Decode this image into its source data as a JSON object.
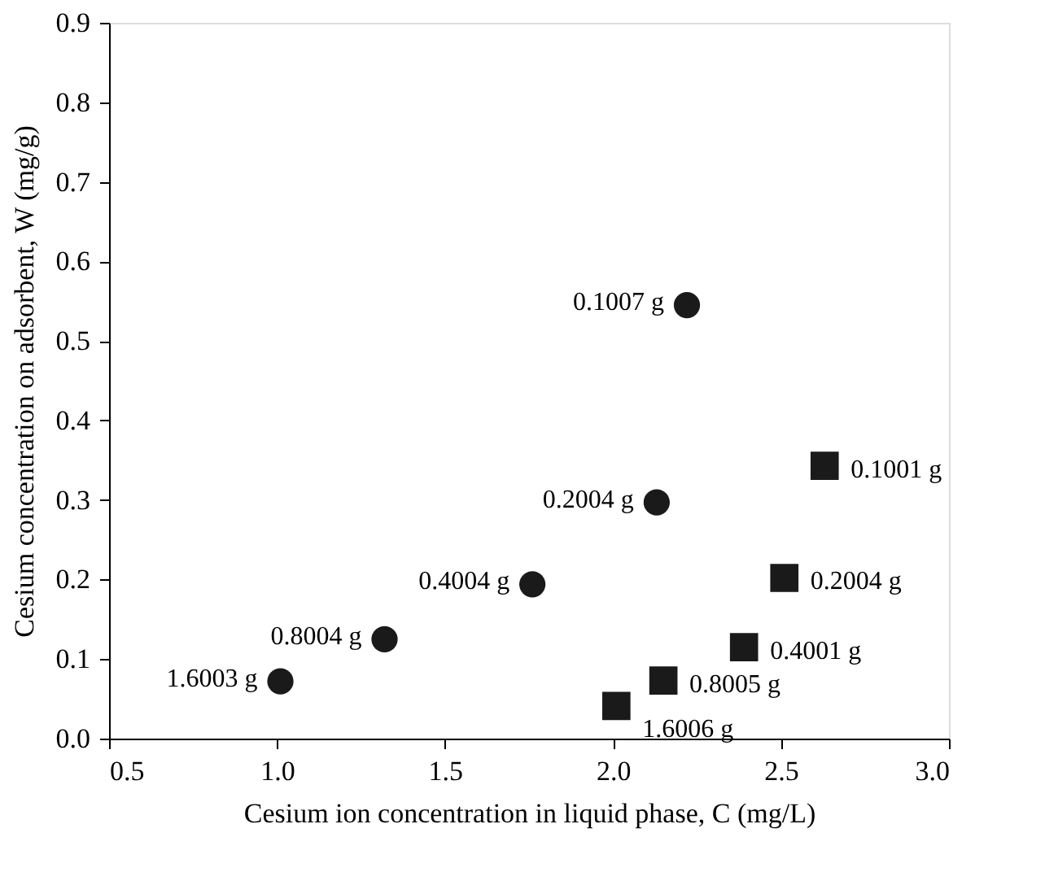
{
  "chart_data": {
    "type": "scatter",
    "xlabel": "Cesium ion concentration in liquid phase, C (mg/L)",
    "ylabel": "Cesium concentration on adsorbent, W (mg/g)",
    "xlim": [
      0.5,
      3.0
    ],
    "xticks": [
      {
        "value": 0.5,
        "label": "0.5"
      },
      {
        "value": 1.0,
        "label": "1.0"
      },
      {
        "value": 1.5,
        "label": "1.5"
      },
      {
        "value": 2.0,
        "label": "2.0"
      },
      {
        "value": 2.5,
        "label": "2.5"
      },
      {
        "value": 3.0,
        "label": "3.0"
      }
    ],
    "ylim": [
      0.0,
      0.9
    ],
    "yticks": [
      {
        "value": 0.0,
        "label": "0.0"
      },
      {
        "value": 0.1,
        "label": "0.1"
      },
      {
        "value": 0.2,
        "label": "0.2"
      },
      {
        "value": 0.3,
        "label": "0.3"
      },
      {
        "value": 0.4,
        "label": "0.4"
      },
      {
        "value": 0.5,
        "label": "0.5"
      },
      {
        "value": 0.6,
        "label": "0.6"
      },
      {
        "value": 0.7,
        "label": "0.7"
      },
      {
        "value": 0.8,
        "label": "0.8"
      },
      {
        "value": 0.9,
        "label": "0.9"
      }
    ],
    "series": [
      {
        "color": "#1a1a1a",
        "marker": "circle",
        "x": [
          1.01,
          1.32,
          1.76,
          2.13,
          2.22
        ],
        "values": [
          0.072,
          0.125,
          0.194,
          0.297,
          0.545
        ]
      },
      {
        "color": "#1a1a1a",
        "marker": "square",
        "x": [
          2.01,
          2.15,
          2.39,
          2.51,
          2.63
        ],
        "values": [
          0.041,
          0.073,
          0.115,
          0.202,
          0.343
        ]
      }
    ],
    "annotations": [
      {
        "text": "1.6003 g",
        "x": 1.01,
        "y": 0.072
      },
      {
        "text": "0.8004 g",
        "x": 1.32,
        "y": 0.125
      },
      {
        "text": "0.4004 g",
        "x": 1.76,
        "y": 0.194
      },
      {
        "text": "0.2004 g",
        "x": 2.13,
        "y": 0.297
      },
      {
        "text": "0.1007 g",
        "x": 2.22,
        "y": 0.545
      },
      {
        "text": "1.6006 g",
        "x": 2.01,
        "y": 0.041
      },
      {
        "text": "0.8005 g",
        "x": 2.15,
        "y": 0.073
      },
      {
        "text": "0.4001 g",
        "x": 2.39,
        "y": 0.115
      },
      {
        "text": "0.2004 g",
        "x": 2.51,
        "y": 0.202
      },
      {
        "text": "0.1001 g",
        "x": 2.63,
        "y": 0.343
      }
    ]
  }
}
